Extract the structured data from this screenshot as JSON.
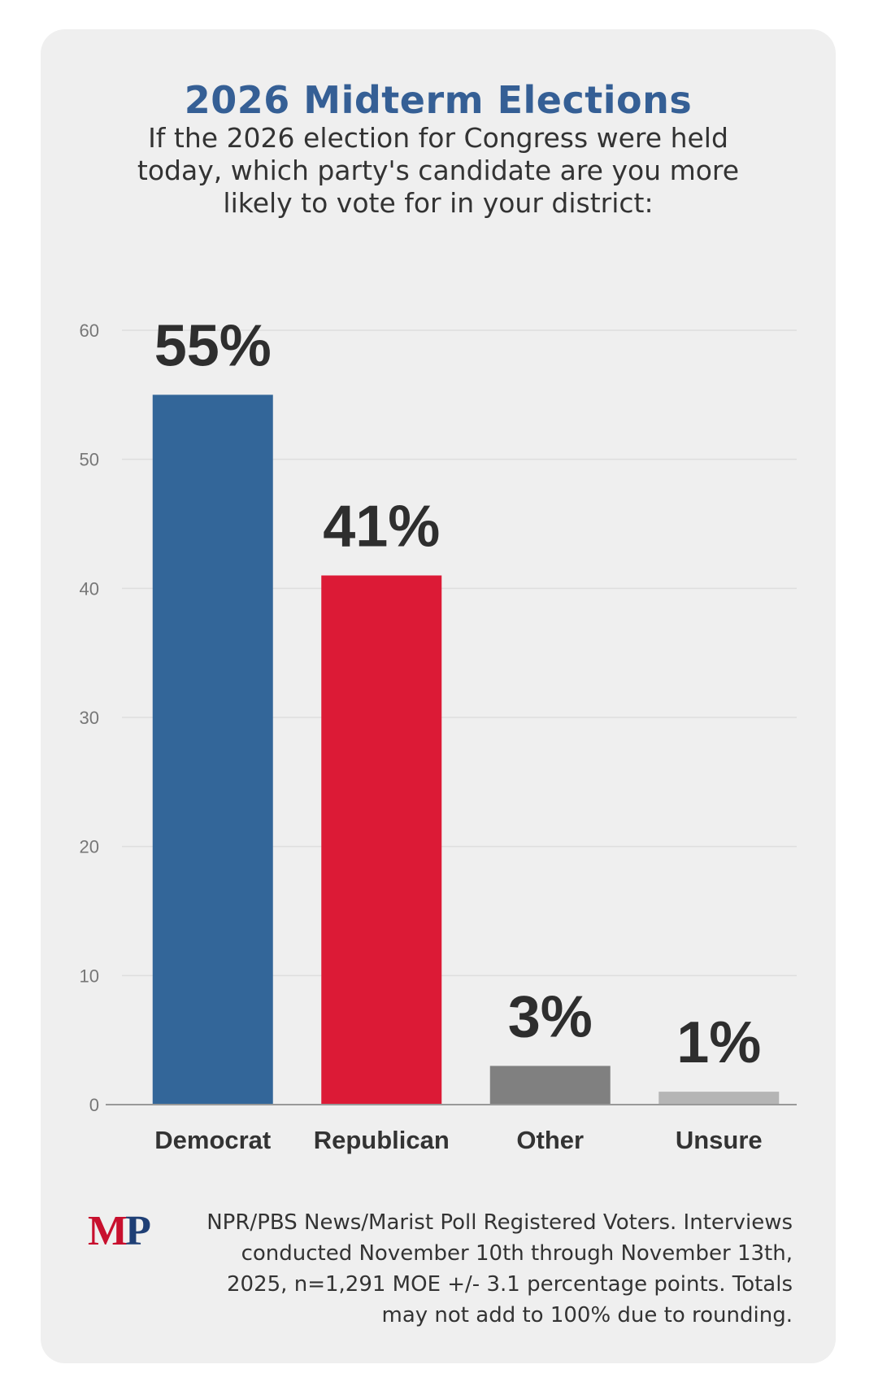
{
  "header": {
    "title": "2026 Midterm Elections",
    "subtitle": "If the 2026 election for Congress were held today, which party's candidate are you more likely to vote for in your district:"
  },
  "chart_data": {
    "type": "bar",
    "categories": [
      "Democrat",
      "Republican",
      "Other",
      "Unsure"
    ],
    "values": [
      55,
      41,
      3,
      1
    ],
    "value_labels": [
      "55%",
      "41%",
      "3%",
      "1%"
    ],
    "colors": [
      "#336699",
      "#dc1a36",
      "#808080",
      "#b5b5b5"
    ],
    "ylim": [
      0,
      60
    ],
    "yticks": [
      0,
      10,
      20,
      30,
      40,
      50,
      60
    ],
    "grid": true,
    "legend": "none"
  },
  "footer": {
    "logo": {
      "m": "M",
      "p": "P"
    },
    "note": "NPR/PBS News/Marist Poll Registered Voters. Interviews conducted November 10th through November 13th, 2025, n=1,291 MOE +/- 3.1 percentage points. Totals may not add to 100% due to rounding."
  }
}
